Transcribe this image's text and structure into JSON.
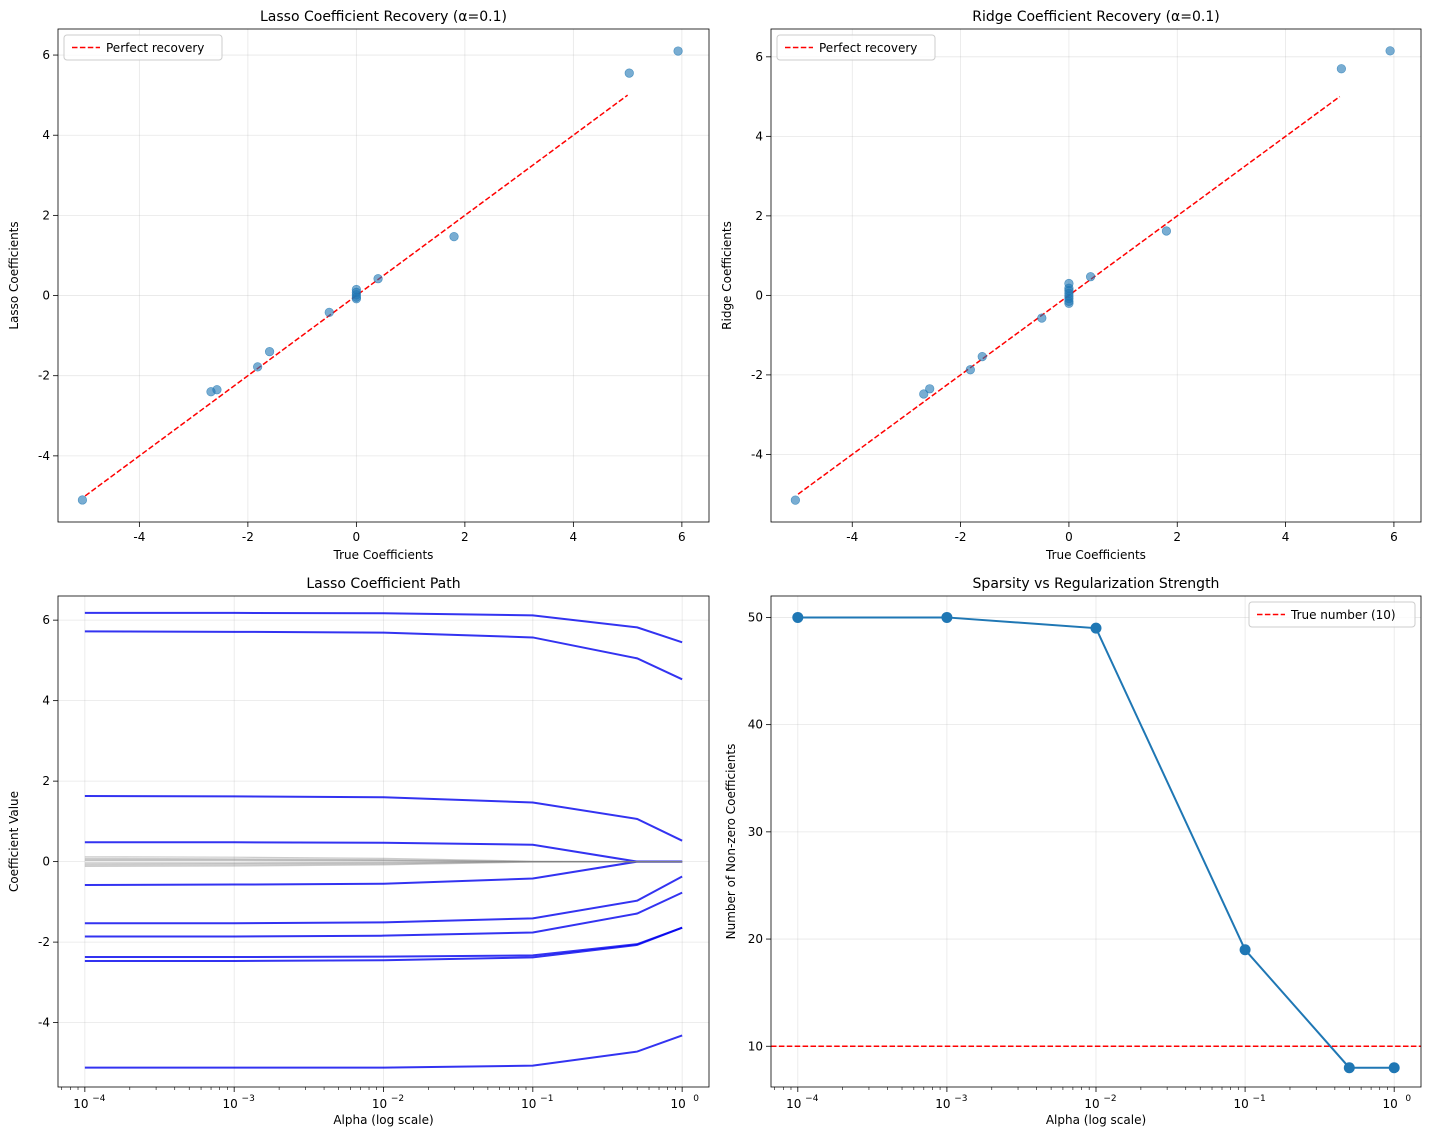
{
  "chart_data": [
    {
      "type": "scatter",
      "title": "Lasso Coefficient Recovery (α=0.1)",
      "xlabel": "True Coefficients",
      "ylabel": "Lasso Coefficients",
      "xlim": [
        -5.5,
        6.5
      ],
      "ylim": [
        -5.65,
        6.65
      ],
      "xticks": [
        -4,
        -2,
        0,
        2,
        4,
        6
      ],
      "yticks": [
        -4,
        -2,
        0,
        2,
        4,
        6
      ],
      "grid": true,
      "legend": {
        "placement": "upper-left",
        "entries": [
          {
            "label": "Perfect recovery",
            "style": "dashed",
            "color": "#ff0000"
          }
        ]
      },
      "points_color": "#1f77b4",
      "reference_line": {
        "x": [
          -5,
          5
        ],
        "y": [
          -5,
          5
        ]
      },
      "points": [
        [
          -5.05,
          -5.1
        ],
        [
          -2.68,
          -2.4
        ],
        [
          -2.57,
          -2.35
        ],
        [
          -1.82,
          -1.78
        ],
        [
          -1.6,
          -1.4
        ],
        [
          -0.5,
          -0.42
        ],
        [
          0.0,
          0.15
        ],
        [
          0.0,
          0.08
        ],
        [
          0.0,
          0.02
        ],
        [
          0.0,
          -0.04
        ],
        [
          0.0,
          -0.08
        ],
        [
          0.4,
          0.42
        ],
        [
          1.8,
          1.47
        ],
        [
          5.03,
          5.55
        ],
        [
          5.93,
          6.1
        ]
      ]
    },
    {
      "type": "scatter",
      "title": "Ridge Coefficient Recovery (α=0.1)",
      "xlabel": "True Coefficients",
      "ylabel": "Ridge Coefficients",
      "xlim": [
        -5.5,
        6.5
      ],
      "ylim": [
        -5.7,
        6.7
      ],
      "xticks": [
        -4,
        -2,
        0,
        2,
        4,
        6
      ],
      "yticks": [
        -4,
        -2,
        0,
        2,
        4,
        6
      ],
      "grid": true,
      "legend": {
        "placement": "upper-left",
        "entries": [
          {
            "label": "Perfect recovery",
            "style": "dashed",
            "color": "#ff0000"
          }
        ]
      },
      "points_color": "#1f77b4",
      "reference_line": {
        "x": [
          -5,
          5
        ],
        "y": [
          -5,
          5
        ]
      },
      "points": [
        [
          -5.05,
          -5.15
        ],
        [
          -2.68,
          -2.48
        ],
        [
          -2.57,
          -2.35
        ],
        [
          -1.82,
          -1.87
        ],
        [
          -1.6,
          -1.54
        ],
        [
          -0.5,
          -0.57
        ],
        [
          0.0,
          0.3
        ],
        [
          0.0,
          0.18
        ],
        [
          0.0,
          0.12
        ],
        [
          0.0,
          0.05
        ],
        [
          0.0,
          -0.02
        ],
        [
          0.0,
          -0.08
        ],
        [
          0.0,
          -0.15
        ],
        [
          0.0,
          -0.2
        ],
        [
          0.4,
          0.47
        ],
        [
          1.8,
          1.62
        ],
        [
          5.03,
          5.7
        ],
        [
          5.93,
          6.15
        ]
      ]
    },
    {
      "type": "line",
      "title": "Lasso Coefficient Path",
      "xlabel": "Alpha (log scale)",
      "ylabel": "Coefficient Value",
      "xscale": "log",
      "xlim": [
        6.61e-05,
        1.513
      ],
      "ylim": [
        -5.6,
        6.6
      ],
      "yticks": [
        -4,
        -2,
        0,
        2,
        4,
        6
      ],
      "xtick_labels": [
        "10",
        "10",
        "10",
        "10",
        "10"
      ],
      "xtick_exponents": [
        "−4",
        "−3",
        "−2",
        "−1",
        "0"
      ],
      "xtick_values": [
        0.0001,
        0.001,
        0.01,
        0.1,
        1
      ],
      "grid": true,
      "x": [
        0.0001,
        0.001,
        0.01,
        0.1,
        0.5,
        1
      ],
      "series": [
        {
          "role": "true-nonzero",
          "color": "#0000ee",
          "values": [
            6.18,
            6.18,
            6.17,
            6.12,
            5.82,
            5.45
          ]
        },
        {
          "role": "true-nonzero",
          "color": "#0000ee",
          "values": [
            5.72,
            5.71,
            5.69,
            5.57,
            5.05,
            4.53
          ]
        },
        {
          "role": "true-nonzero",
          "color": "#0000ee",
          "values": [
            1.63,
            1.62,
            1.6,
            1.47,
            1.06,
            0.52
          ]
        },
        {
          "role": "true-nonzero",
          "color": "#0000ee",
          "values": [
            0.48,
            0.48,
            0.47,
            0.42,
            0.0,
            0.0
          ]
        },
        {
          "role": "true-nonzero",
          "color": "#0000ee",
          "values": [
            -0.58,
            -0.57,
            -0.55,
            -0.42,
            0.0,
            0.0
          ]
        },
        {
          "role": "true-nonzero",
          "color": "#0000ee",
          "values": [
            -1.53,
            -1.53,
            -1.51,
            -1.41,
            -0.97,
            -0.37
          ]
        },
        {
          "role": "true-nonzero",
          "color": "#0000ee",
          "values": [
            -1.86,
            -1.86,
            -1.84,
            -1.76,
            -1.29,
            -0.77
          ]
        },
        {
          "role": "true-nonzero",
          "color": "#0000ee",
          "values": [
            -2.37,
            -2.37,
            -2.36,
            -2.33,
            -2.05,
            -1.64
          ]
        },
        {
          "role": "true-nonzero",
          "color": "#0000ee",
          "values": [
            -2.47,
            -2.47,
            -2.45,
            -2.38,
            -2.07,
            -1.64
          ]
        },
        {
          "role": "true-nonzero",
          "color": "#0000ee",
          "values": [
            -5.12,
            -5.12,
            -5.12,
            -5.07,
            -4.72,
            -4.32
          ]
        },
        {
          "role": "true-zero",
          "color": "#808080",
          "values": [
            0.12,
            0.11,
            0.08,
            0.01,
            0.0,
            0.0
          ]
        },
        {
          "role": "true-zero",
          "color": "#808080",
          "values": [
            0.08,
            0.07,
            0.05,
            0.0,
            0.0,
            0.0
          ]
        },
        {
          "role": "true-zero",
          "color": "#808080",
          "values": [
            0.05,
            0.05,
            0.03,
            0.0,
            0.0,
            0.0
          ]
        },
        {
          "role": "true-zero",
          "color": "#808080",
          "values": [
            0.03,
            0.03,
            0.02,
            0.0,
            0.0,
            0.0
          ]
        },
        {
          "role": "true-zero",
          "color": "#808080",
          "values": [
            -0.03,
            -0.03,
            -0.02,
            0.0,
            0.0,
            0.0
          ]
        },
        {
          "role": "true-zero",
          "color": "#808080",
          "values": [
            -0.06,
            -0.05,
            -0.04,
            0.0,
            0.0,
            0.0
          ]
        },
        {
          "role": "true-zero",
          "color": "#808080",
          "values": [
            -0.09,
            -0.08,
            -0.06,
            0.0,
            0.0,
            0.0
          ]
        },
        {
          "role": "true-zero",
          "color": "#808080",
          "values": [
            -0.12,
            -0.11,
            -0.08,
            -0.01,
            0.0,
            0.0
          ]
        }
      ]
    },
    {
      "type": "line",
      "title": "Sparsity vs Regularization Strength",
      "xlabel": "Alpha (log scale)",
      "ylabel": "Number of Non-zero Coefficients",
      "xscale": "log",
      "xlim": [
        6.61e-05,
        1.513
      ],
      "ylim": [
        6.2,
        52.0
      ],
      "yticks": [
        10,
        20,
        30,
        40,
        50
      ],
      "xtick_labels": [
        "10",
        "10",
        "10",
        "10",
        "10"
      ],
      "xtick_exponents": [
        "−4",
        "−3",
        "−2",
        "−1",
        "0"
      ],
      "xtick_values": [
        0.0001,
        0.001,
        0.01,
        0.1,
        1
      ],
      "grid": true,
      "legend": {
        "placement": "upper-right",
        "entries": [
          {
            "label": "True number (10)",
            "style": "dashed",
            "color": "#ff0000"
          }
        ]
      },
      "hline": 10,
      "line_color": "#1f77b4",
      "x": [
        0.0001,
        0.001,
        0.01,
        0.1,
        0.5,
        1
      ],
      "values": [
        50,
        50,
        49,
        19,
        8,
        8
      ]
    }
  ]
}
